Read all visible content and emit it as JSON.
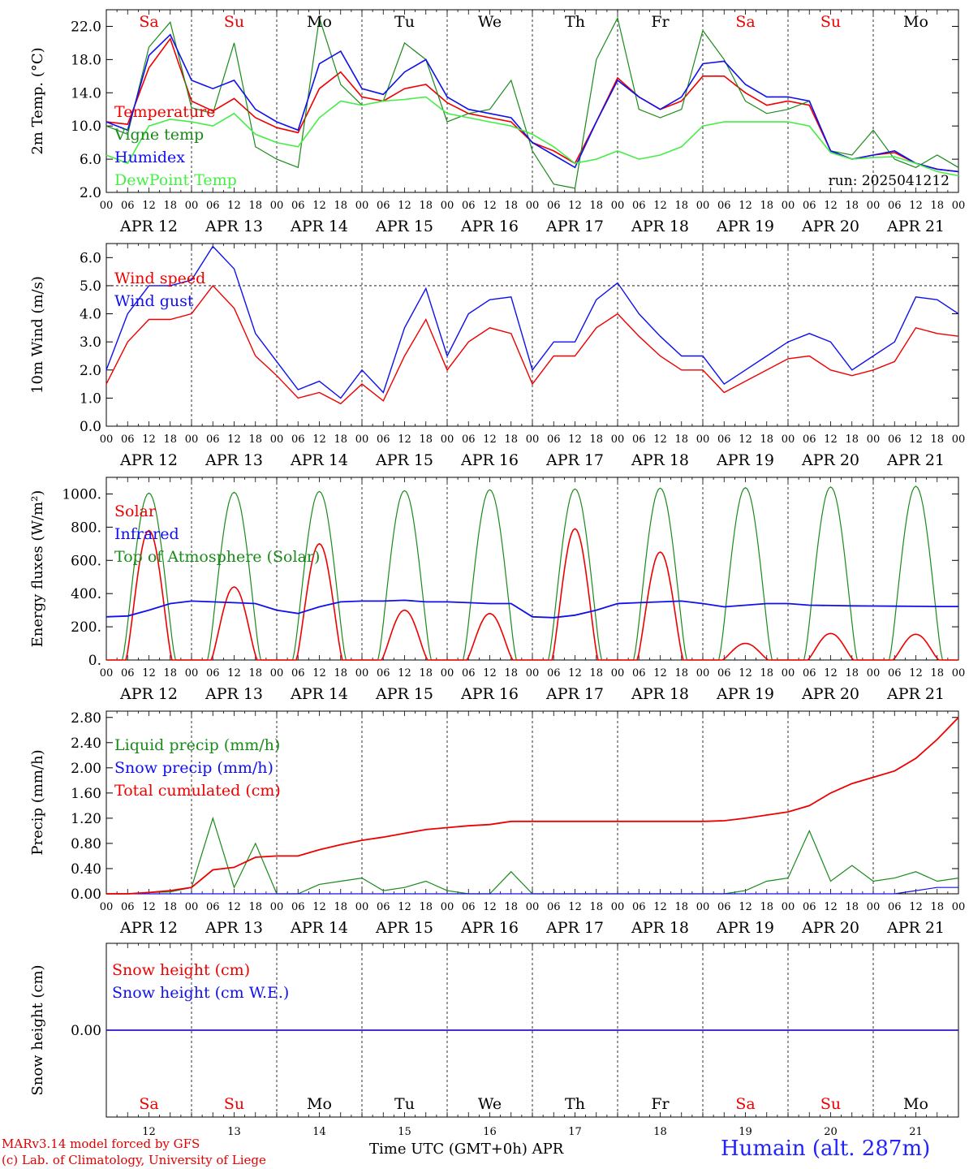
{
  "colors": {
    "red": "#ee0000",
    "darkgreen": "#1a8a1a",
    "blue": "#1010ee",
    "lightgreen": "#44ee44"
  },
  "day_tick_labels": [
    "00",
    "06",
    "12",
    "18"
  ],
  "end_tick_label": "00",
  "date_labels": [
    "APR 12",
    "APR 13",
    "APR 14",
    "APR 15",
    "APR 16",
    "APR 17",
    "APR 18",
    "APR 19",
    "APR 20",
    "APR 21"
  ],
  "weekdays": [
    {
      "label": "Sa",
      "weekend": true
    },
    {
      "label": "Su",
      "weekend": true
    },
    {
      "label": "Mo",
      "weekend": false
    },
    {
      "label": "Tu",
      "weekend": false
    },
    {
      "label": "We",
      "weekend": false
    },
    {
      "label": "Th",
      "weekend": false
    },
    {
      "label": "Fr",
      "weekend": false
    },
    {
      "label": "Sa",
      "weekend": true
    },
    {
      "label": "Su",
      "weekend": true
    },
    {
      "label": "Mo",
      "weekend": false
    }
  ],
  "bottom_day_numbers": [
    "12",
    "13",
    "14",
    "15",
    "16",
    "17",
    "18",
    "19",
    "20",
    "21"
  ],
  "footer": {
    "credit1": "MARv3.14 model forced by GFS",
    "credit2": "(c) Lab. of Climatology, University of Liege",
    "xaxis": "Time UTC (GMT+0h) APR",
    "station": "Humain (alt. 287m)"
  },
  "chart_data": [
    {
      "id": "temp",
      "type": "line",
      "ylabel": "2m Temp. (°C)",
      "ylim": [
        2,
        24
      ],
      "yticks": [
        "2.0",
        "6.0",
        "10.0",
        "14.0",
        "18.0",
        "22.0"
      ],
      "note": "run: 2025041212",
      "x_hours": [
        0,
        6,
        12,
        18,
        24,
        30,
        36,
        42,
        48,
        54,
        60,
        66,
        72,
        78,
        84,
        90,
        96,
        102,
        108,
        114,
        120,
        126,
        132,
        138,
        144,
        150,
        156,
        162,
        168,
        174,
        180,
        186,
        192,
        198,
        204,
        210,
        216,
        222,
        228,
        234,
        240
      ],
      "series": [
        {
          "name": "Temperature",
          "color": "red",
          "values": [
            10.5,
            10.2,
            17.0,
            20.5,
            13.0,
            11.8,
            13.3,
            11.0,
            9.8,
            9.2,
            14.5,
            16.5,
            13.5,
            13.0,
            14.5,
            15.0,
            12.8,
            11.5,
            11.0,
            10.5,
            8.0,
            7.0,
            5.5,
            10.5,
            15.8,
            13.5,
            12.0,
            13.0,
            16.0,
            16.0,
            14.0,
            12.5,
            13.0,
            12.5,
            7.0,
            6.0,
            6.5,
            6.8,
            5.5,
            4.8,
            4.5
          ]
        },
        {
          "name": "Vigne temp",
          "color": "darkgreen",
          "values": [
            10.0,
            9.0,
            19.5,
            22.5,
            12.2,
            11.5,
            20.0,
            7.5,
            6.0,
            5.0,
            23.0,
            15.0,
            12.5,
            13.0,
            20.0,
            18.0,
            10.5,
            11.5,
            12.0,
            15.5,
            7.0,
            3.0,
            2.5,
            18.0,
            23.0,
            12.0,
            11.0,
            12.0,
            21.5,
            18.0,
            13.0,
            11.5,
            12.0,
            13.0,
            7.0,
            6.5,
            9.5,
            6.0,
            5.0,
            6.5,
            5.0
          ]
        },
        {
          "name": "Humidex",
          "color": "blue",
          "values": [
            10.5,
            9.5,
            18.5,
            21.0,
            15.5,
            14.5,
            15.5,
            12.0,
            10.5,
            9.5,
            17.5,
            19.0,
            14.5,
            13.8,
            16.5,
            18.0,
            13.5,
            12.0,
            11.5,
            11.0,
            8.0,
            6.5,
            5.0,
            10.5,
            15.5,
            13.5,
            12.0,
            13.5,
            17.5,
            17.8,
            15.0,
            13.5,
            13.5,
            13.0,
            7.0,
            6.0,
            6.5,
            7.0,
            5.5,
            4.8,
            4.5
          ]
        },
        {
          "name": "DewPoint Temp",
          "color": "lightgreen",
          "values": [
            6.5,
            5.5,
            10.0,
            10.8,
            10.5,
            10.0,
            11.5,
            9.0,
            8.0,
            7.5,
            11.0,
            13.0,
            12.5,
            13.0,
            13.2,
            13.5,
            11.5,
            11.0,
            10.5,
            10.0,
            9.0,
            7.5,
            5.5,
            6.0,
            7.0,
            6.0,
            6.5,
            7.5,
            10.0,
            10.5,
            10.5,
            10.5,
            10.5,
            10.0,
            6.8,
            6.0,
            6.2,
            6.3,
            5.5,
            4.5,
            4.0
          ]
        }
      ]
    },
    {
      "id": "wind",
      "type": "line",
      "ylabel": "10m Wind (m/s)",
      "ylim": [
        0,
        6.5
      ],
      "yticks": [
        "0.0",
        "1.0",
        "2.0",
        "3.0",
        "4.0",
        "5.0",
        "6.0"
      ],
      "ref_line": 5.0,
      "x_hours": [
        0,
        6,
        12,
        18,
        24,
        30,
        36,
        42,
        48,
        54,
        60,
        66,
        72,
        78,
        84,
        90,
        96,
        102,
        108,
        114,
        120,
        126,
        132,
        138,
        144,
        150,
        156,
        162,
        168,
        174,
        180,
        186,
        192,
        198,
        204,
        210,
        216,
        222,
        228,
        234,
        240
      ],
      "series": [
        {
          "name": "Wind speed",
          "color": "red",
          "values": [
            1.5,
            3.0,
            3.8,
            3.8,
            4.0,
            5.0,
            4.2,
            2.5,
            1.8,
            1.0,
            1.2,
            0.8,
            1.5,
            0.9,
            2.5,
            3.8,
            2.0,
            3.0,
            3.5,
            3.3,
            1.5,
            2.5,
            2.5,
            3.5,
            4.0,
            3.2,
            2.5,
            2.0,
            2.0,
            1.2,
            1.6,
            2.0,
            2.4,
            2.5,
            2.0,
            1.8,
            2.0,
            2.3,
            3.5,
            3.3,
            3.2
          ]
        },
        {
          "name": "Wind gust",
          "color": "blue",
          "values": [
            2.0,
            4.0,
            5.0,
            5.0,
            5.2,
            6.4,
            5.6,
            3.3,
            2.3,
            1.3,
            1.6,
            1.0,
            2.0,
            1.2,
            3.5,
            4.9,
            2.5,
            4.0,
            4.5,
            4.6,
            2.0,
            3.0,
            3.0,
            4.5,
            5.1,
            4.0,
            3.2,
            2.5,
            2.5,
            1.5,
            2.0,
            2.5,
            3.0,
            3.3,
            3.0,
            2.0,
            2.5,
            3.0,
            4.6,
            4.5,
            4.0
          ]
        }
      ]
    },
    {
      "id": "energy",
      "type": "line",
      "ylabel": "Energy fluxes (W/m²)",
      "ylim": [
        0,
        1100
      ],
      "yticks": [
        "0.",
        "200.",
        "400.",
        "600.",
        "800.",
        "1000."
      ],
      "series": [
        {
          "name": "Solar",
          "color": "red",
          "peaks": [
            780,
            440,
            700,
            300,
            280,
            790,
            650,
            100,
            160,
            155
          ]
        },
        {
          "name": "Infrared",
          "color": "blue",
          "x_hours": [
            0,
            6,
            12,
            18,
            24,
            30,
            36,
            42,
            48,
            54,
            60,
            66,
            72,
            78,
            84,
            90,
            96,
            102,
            108,
            114,
            120,
            126,
            132,
            138,
            144,
            150,
            156,
            162,
            168,
            174,
            180,
            186,
            192,
            198,
            204,
            210,
            216,
            222,
            228,
            234,
            240
          ],
          "values": [
            260,
            265,
            300,
            340,
            355,
            350,
            345,
            340,
            300,
            280,
            320,
            350,
            355,
            355,
            360,
            350,
            350,
            345,
            340,
            340,
            260,
            255,
            270,
            300,
            340,
            345,
            350,
            355,
            340,
            320,
            330,
            340,
            340,
            330,
            328,
            326,
            325,
            324,
            323,
            322,
            322
          ]
        },
        {
          "name": "Top of Atmosphere (Solar)",
          "color": "darkgreen",
          "peaks": [
            1005,
            1010,
            1015,
            1020,
            1025,
            1030,
            1035,
            1038,
            1042,
            1046
          ]
        }
      ]
    },
    {
      "id": "precip",
      "type": "line",
      "ylabel": "Precip (mm/h)",
      "ylim": [
        0,
        2.9
      ],
      "yticks": [
        "0.00",
        "0.40",
        "0.80",
        "1.20",
        "1.60",
        "2.00",
        "2.40",
        "2.80"
      ],
      "x_hours": [
        0,
        6,
        12,
        18,
        24,
        30,
        36,
        42,
        48,
        54,
        60,
        66,
        72,
        78,
        84,
        90,
        96,
        102,
        108,
        114,
        120,
        126,
        132,
        138,
        144,
        150,
        156,
        162,
        168,
        174,
        180,
        186,
        192,
        198,
        204,
        210,
        216,
        222,
        228,
        234,
        240
      ],
      "series": [
        {
          "name": "Liquid precip (mm/h)",
          "color": "darkgreen",
          "values": [
            0,
            0,
            0.02,
            0.03,
            0.1,
            1.2,
            0.1,
            0.8,
            0,
            0,
            0.15,
            0.2,
            0.25,
            0.05,
            0.1,
            0.2,
            0.05,
            0,
            0,
            0.35,
            0,
            0,
            0,
            0,
            0,
            0,
            0,
            0,
            0,
            0,
            0.05,
            0.2,
            0.25,
            1.0,
            0.2,
            0.45,
            0.2,
            0.25,
            0.35,
            0.2,
            0.25
          ]
        },
        {
          "name": "Snow precip (mm/h)",
          "color": "blue",
          "values": [
            0,
            0,
            0,
            0,
            0,
            0,
            0,
            0,
            0,
            0,
            0,
            0,
            0,
            0,
            0,
            0,
            0,
            0,
            0,
            0,
            0,
            0,
            0,
            0,
            0,
            0,
            0,
            0,
            0,
            0,
            0,
            0,
            0,
            0,
            0,
            0,
            0,
            0,
            0.05,
            0.1,
            0.1
          ]
        },
        {
          "name": "Total cumulated (cm)",
          "color": "red",
          "values": [
            0,
            0,
            0.02,
            0.05,
            0.1,
            0.38,
            0.42,
            0.58,
            0.6,
            0.6,
            0.7,
            0.78,
            0.85,
            0.9,
            0.96,
            1.02,
            1.05,
            1.08,
            1.1,
            1.15,
            1.15,
            1.15,
            1.15,
            1.15,
            1.15,
            1.15,
            1.15,
            1.15,
            1.15,
            1.16,
            1.2,
            1.25,
            1.3,
            1.4,
            1.6,
            1.75,
            1.85,
            1.95,
            2.15,
            2.45,
            2.8
          ]
        }
      ]
    },
    {
      "id": "snow",
      "type": "line",
      "ylabel": "Snow height (cm)",
      "ylim": [
        -1,
        1
      ],
      "yticks": [
        "0.00"
      ],
      "series": [
        {
          "name": "Snow height (cm)",
          "color": "red",
          "values": [
            0,
            0
          ]
        },
        {
          "name": "Snow height (cm W.E.)",
          "color": "blue",
          "values": [
            0,
            0
          ]
        }
      ]
    }
  ]
}
